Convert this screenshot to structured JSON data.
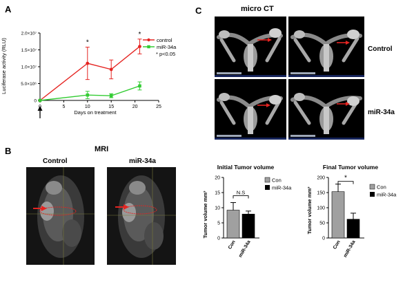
{
  "panels": {
    "a": "A",
    "b": "B",
    "c": "C"
  },
  "line_chart": {
    "ylabel": "Luciferase activity (RLU)",
    "xlabel": "Days on treatment",
    "y_ticks": [
      "0",
      "5.0×10⁶",
      "1.0×10⁷",
      "1.5×10⁷",
      "2.0×10⁷"
    ],
    "x_ticks": [
      "0",
      "5",
      "10",
      "15",
      "20",
      "25"
    ],
    "legend": [
      "control",
      "miR-34a"
    ],
    "p_note": "* p<0.05",
    "star": "*",
    "colors": {
      "control": "#e52421",
      "mir34a": "#33cc33"
    }
  },
  "mri": {
    "title": "MRI",
    "labels": [
      "Control",
      "miR-34a"
    ]
  },
  "micro_ct": {
    "title": "micro CT",
    "row_labels": [
      "Control",
      "miR-34a"
    ]
  },
  "initial_volume": {
    "title": "Initial Tumor volume",
    "ylabel": "Tumor volume mm³",
    "y_ticks": [
      "0",
      "5",
      "10",
      "15",
      "20"
    ],
    "categories": [
      "Con",
      "miR-34a"
    ],
    "legend": [
      "Con",
      "miR-34a"
    ],
    "sig": "N.S"
  },
  "final_volume": {
    "title": "Final Tumor volume",
    "ylabel": "Tumor volume mm³",
    "y_ticks": [
      "0",
      "50",
      "100",
      "150",
      "200"
    ],
    "categories": [
      "Con",
      "miR-34a"
    ],
    "legend": [
      "Con",
      "miR-34a"
    ],
    "sig": "*"
  },
  "chart_data": [
    {
      "type": "line",
      "xlabel": "Days on treatment",
      "ylabel": "Luciferase activity (RLU)",
      "xlim": [
        0,
        25
      ],
      "ylim": [
        0,
        20000000
      ],
      "x": [
        0,
        10,
        15,
        21
      ],
      "series": [
        {
          "name": "control",
          "values": [
            0,
            11000000,
            9200000,
            16000000
          ],
          "errors": [
            0,
            4800000,
            2800000,
            2200000
          ]
        },
        {
          "name": "miR-34a",
          "values": [
            0,
            1600000,
            1400000,
            4300000
          ],
          "errors": [
            0,
            1100000,
            600000,
            1200000
          ]
        }
      ],
      "significant_x": [
        10,
        21
      ],
      "legend_position": "top-right",
      "grid": false
    },
    {
      "type": "bar",
      "title": "Initial Tumor volume",
      "ylabel": "Tumor volume mm³",
      "ylim": [
        0,
        20
      ],
      "categories": [
        "Con",
        "miR-34a"
      ],
      "values": [
        9.2,
        7.9
      ],
      "errors": [
        2.5,
        1.0
      ],
      "colors": [
        "#a0a0a0",
        "#000000"
      ],
      "legend_position": "right",
      "grid": false
    },
    {
      "type": "bar",
      "title": "Final Tumor volume",
      "ylabel": "Tumor volume mm³",
      "ylim": [
        0,
        200
      ],
      "categories": [
        "Con",
        "miR-34a"
      ],
      "values": [
        153,
        62
      ],
      "errors": [
        25,
        20
      ],
      "colors": [
        "#a0a0a0",
        "#000000"
      ],
      "legend_position": "right",
      "grid": false
    }
  ]
}
